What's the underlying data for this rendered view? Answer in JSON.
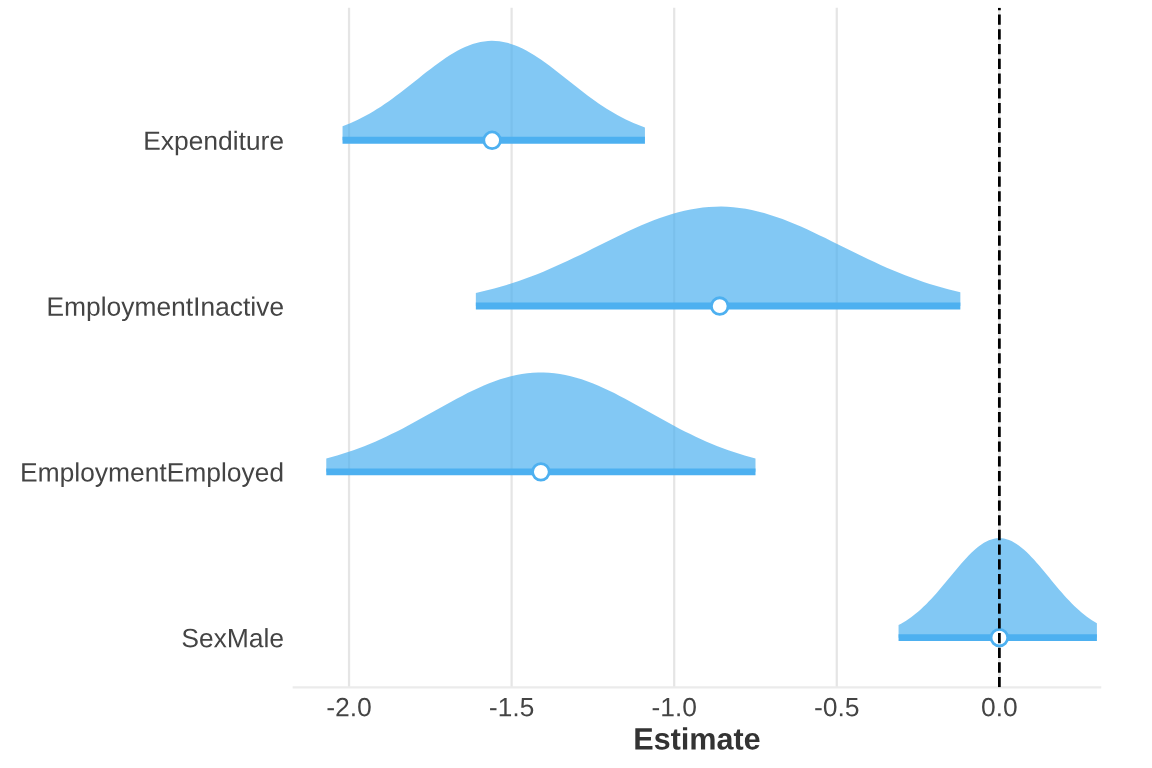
{
  "chart_data": {
    "type": "scatter",
    "orientation": "horizontal",
    "xlabel": "Estimate",
    "categories": [
      "Expenditure",
      "EmploymentInactive",
      "EmploymentEmployed",
      "SexMale"
    ],
    "values": [
      -1.56,
      -0.86,
      -1.41,
      0.0
    ],
    "errors": [
      [
        -2.02,
        -1.09
      ],
      [
        -1.61,
        -0.12
      ],
      [
        -2.07,
        -0.75
      ],
      [
        -0.31,
        0.3
      ]
    ],
    "color": "#4db0f0",
    "marker": "circle",
    "xlim": [
      -2.17,
      0.31
    ],
    "xticks": [
      {
        "value": -2,
        "label": "-2.0"
      },
      {
        "value": -1.5,
        "label": "-1.5"
      },
      {
        "value": -1,
        "label": "-1.0"
      },
      {
        "value": -0.5,
        "label": "-0.5"
      },
      {
        "value": 0,
        "label": "0.0"
      }
    ],
    "ref_lines": [
      {
        "axis": "x",
        "value": 0,
        "color": "#000000",
        "line_style": "dashed"
      }
    ],
    "grid": "x"
  }
}
